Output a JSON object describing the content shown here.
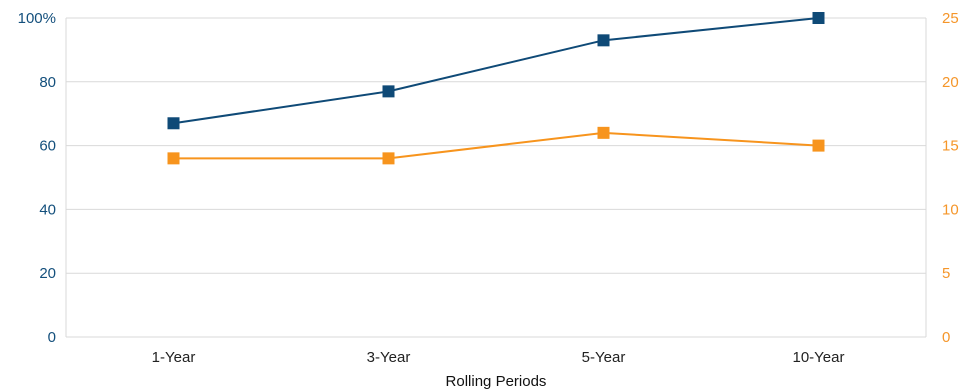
{
  "chart_data": {
    "type": "line",
    "categories": [
      "1-Year",
      "3-Year",
      "5-Year",
      "10-Year"
    ],
    "xlabel": "Rolling Periods",
    "y_left": {
      "range": [
        0,
        100
      ],
      "ticks": [
        0,
        20,
        40,
        60,
        80,
        100
      ],
      "tick_labels": [
        "0",
        "20",
        "40",
        "60",
        "80",
        "100%"
      ],
      "color": "#134f7c"
    },
    "y_right": {
      "range": [
        0,
        25
      ],
      "ticks": [
        0,
        5,
        10,
        15,
        20,
        25
      ],
      "tick_labels": [
        "0",
        "5",
        "10",
        "15",
        "20",
        "25"
      ],
      "color": "#f5962a"
    },
    "series": [
      {
        "axis": "left",
        "color": "#0f4a77",
        "marker": "square",
        "values": [
          67,
          77,
          93,
          100
        ]
      },
      {
        "axis": "right",
        "color": "#f7941d",
        "marker": "square",
        "values": [
          14,
          14,
          16,
          15
        ]
      }
    ],
    "grid": true
  }
}
